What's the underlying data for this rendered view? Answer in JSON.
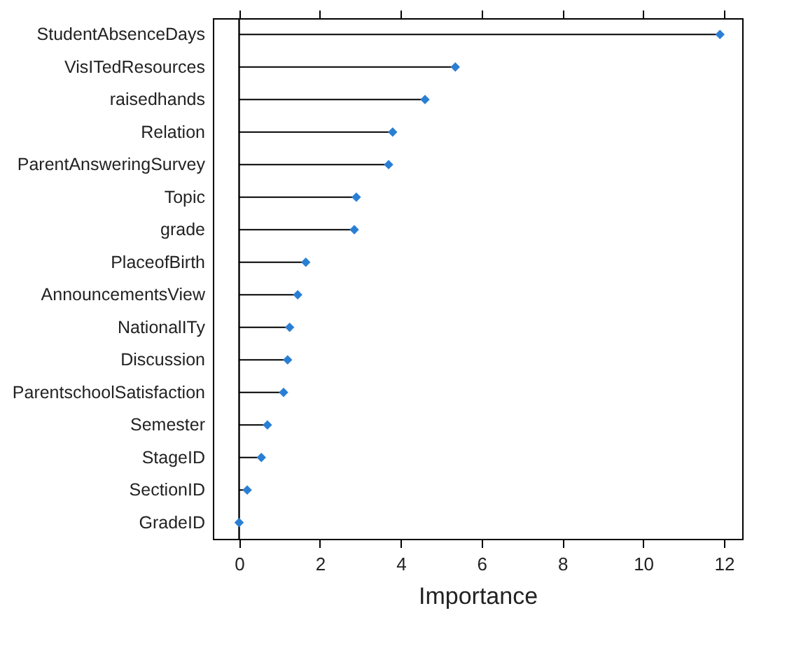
{
  "chart_data": {
    "type": "lollipop",
    "orientation": "horizontal",
    "xlabel": "Importance",
    "categories": [
      "StudentAbsenceDays",
      "VisITedResources",
      "raisedhands",
      "Relation",
      "ParentAnsweringSurvey",
      "Topic",
      "grade",
      "PlaceofBirth",
      "AnnouncementsView",
      "NationalITy",
      "Discussion",
      "ParentschoolSatisfaction",
      "Semester",
      "StageID",
      "SectionID",
      "GradeID"
    ],
    "values": [
      11.9,
      5.35,
      4.6,
      3.8,
      3.7,
      2.9,
      2.85,
      1.65,
      1.45,
      1.25,
      1.2,
      1.1,
      0.7,
      0.55,
      0.2,
      0
    ],
    "color": "#2a7fd4",
    "marker": "diamond",
    "xlim": [
      -0.65,
      12.45
    ],
    "xticks": [
      0,
      2,
      4,
      6,
      8,
      10,
      12
    ],
    "ref_lines": [
      {
        "axis": "x",
        "value": 0,
        "color": "#000000"
      }
    ],
    "grid": false
  }
}
